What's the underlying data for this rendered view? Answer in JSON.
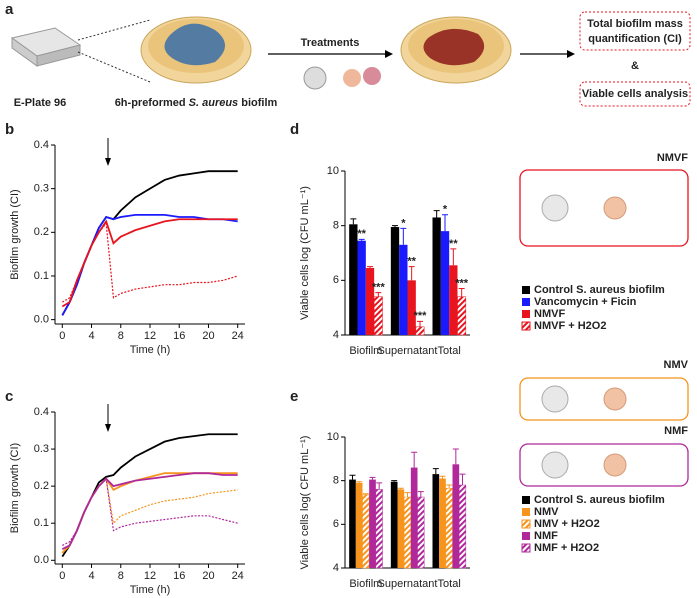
{
  "panel_labels": [
    "a",
    "b",
    "c",
    "d",
    "e"
  ],
  "schematic": {
    "plate": "E-Plate 96",
    "biofilm_prefix": "6h-preformed",
    "biofilm_species": "S. aureus",
    "biofilm_suffix": "biofilm",
    "treatments": "Treatments",
    "box1_line1": "Total biofilm mass",
    "box1_line2": "quantification (CI)",
    "and": "&",
    "box2": "Viable cells analysis"
  },
  "chart_data": [
    {
      "type": "line",
      "x_label": "Time (h)",
      "y_label": "Biofilm growth (CI)",
      "x": [
        0,
        1,
        2,
        3,
        4,
        5,
        6,
        7,
        8,
        10,
        12,
        14,
        16,
        18,
        20,
        22,
        24
      ],
      "xlim": [
        -1,
        25
      ],
      "xticks": [
        0,
        4,
        8,
        12,
        16,
        20,
        24
      ],
      "ylim": [
        -0.01,
        0.4
      ],
      "yticks": [
        {
          "value": 0,
          "label": "0.0"
        },
        0.1,
        0.2,
        0.3,
        0.4
      ],
      "series": [
        {
          "color": "#000000",
          "style": "solid",
          "values": [
            0.01,
            0.04,
            0.08,
            0.13,
            0.17,
            0.21,
            0.235,
            0.23,
            0.25,
            0.28,
            0.3,
            0.32,
            0.33,
            0.335,
            0.34,
            0.34,
            0.34
          ]
        },
        {
          "color": "#1a1aff",
          "style": "solid",
          "values": [
            0.01,
            0.04,
            0.08,
            0.13,
            0.17,
            0.21,
            0.235,
            0.23,
            0.235,
            0.24,
            0.24,
            0.24,
            0.235,
            0.235,
            0.23,
            0.23,
            0.225
          ]
        },
        {
          "color": "#e8141e",
          "style": "solid",
          "values": [
            0.03,
            0.04,
            0.09,
            0.13,
            0.17,
            0.2,
            0.225,
            0.175,
            0.19,
            0.205,
            0.215,
            0.225,
            0.23,
            0.23,
            0.23,
            0.23,
            0.23
          ]
        },
        {
          "color": "#e8141e",
          "style": "dotted",
          "values": [
            0.04,
            0.05,
            0.09,
            0.13,
            0.17,
            0.2,
            0.22,
            0.05,
            0.06,
            0.07,
            0.075,
            0.08,
            0.08,
            0.085,
            0.085,
            0.09,
            0.1
          ]
        }
      ]
    },
    {
      "type": "line",
      "x_label": "Time (h)",
      "y_label": "Biofilm growth (CI)",
      "x": [
        0,
        1,
        2,
        3,
        4,
        5,
        6,
        7,
        8,
        10,
        12,
        14,
        16,
        18,
        20,
        22,
        24
      ],
      "xlim": [
        -1,
        25
      ],
      "xticks": [
        0,
        4,
        8,
        12,
        16,
        20,
        24
      ],
      "ylim": [
        -0.01,
        0.4
      ],
      "yticks": [
        {
          "value": 0,
          "label": "0.0"
        },
        0.1,
        0.2,
        0.3,
        0.4
      ],
      "series": [
        {
          "color": "#000000",
          "style": "solid",
          "values": [
            0.01,
            0.04,
            0.08,
            0.13,
            0.17,
            0.21,
            0.225,
            0.23,
            0.25,
            0.28,
            0.3,
            0.32,
            0.33,
            0.335,
            0.34,
            0.34,
            0.34
          ]
        },
        {
          "color": "#f7941d",
          "style": "solid",
          "values": [
            0.02,
            0.04,
            0.08,
            0.13,
            0.17,
            0.2,
            0.22,
            0.19,
            0.2,
            0.215,
            0.225,
            0.235,
            0.235,
            0.235,
            0.235,
            0.235,
            0.235
          ]
        },
        {
          "color": "#f7941d",
          "style": "dotted",
          "values": [
            0.02,
            0.04,
            0.08,
            0.13,
            0.17,
            0.2,
            0.22,
            0.1,
            0.12,
            0.135,
            0.15,
            0.16,
            0.165,
            0.17,
            0.18,
            0.185,
            0.19
          ]
        },
        {
          "color": "#b0289a",
          "style": "solid",
          "values": [
            0.03,
            0.04,
            0.08,
            0.13,
            0.17,
            0.2,
            0.22,
            0.2,
            0.205,
            0.215,
            0.22,
            0.225,
            0.23,
            0.235,
            0.235,
            0.23,
            0.23
          ]
        },
        {
          "color": "#b0289a",
          "style": "dotted",
          "values": [
            0.04,
            0.05,
            0.08,
            0.13,
            0.17,
            0.2,
            0.22,
            0.08,
            0.09,
            0.1,
            0.105,
            0.11,
            0.115,
            0.12,
            0.12,
            0.11,
            0.1
          ]
        }
      ]
    },
    {
      "type": "bar",
      "y_label": "Viable cells log (CFU mL⁻¹)",
      "categories": [
        "Biofilm",
        "Supernatant",
        "Total"
      ],
      "ylim": [
        4,
        10
      ],
      "yticks": [
        4,
        6,
        8,
        10
      ],
      "series": [
        {
          "name": "Control S. aureus biofilm",
          "color": "#000000",
          "hatch": false,
          "values": [
            8.05,
            7.95,
            8.3
          ],
          "errors": [
            0.2,
            0.05,
            0.25
          ],
          "annotations": [
            null,
            null,
            null
          ]
        },
        {
          "name": "Vancomycin + Ficin",
          "color": "#1a1aff",
          "hatch": false,
          "values": [
            7.45,
            7.3,
            7.8
          ],
          "errors": [
            0.05,
            0.6,
            0.6
          ],
          "annotations": [
            "**",
            "*",
            "*"
          ]
        },
        {
          "name": "NMVF",
          "color": "#e8141e",
          "hatch": false,
          "values": [
            6.45,
            6.0,
            6.55
          ],
          "errors": [
            0.05,
            0.5,
            0.6
          ],
          "annotations": [
            null,
            "**",
            "**"
          ]
        },
        {
          "name": "NMVF + H2O2",
          "color": "#e8141e",
          "hatch": true,
          "values": [
            5.4,
            4.3,
            5.4
          ],
          "errors": [
            0.15,
            0.2,
            0.3
          ],
          "annotations": [
            "***",
            "***",
            "***"
          ]
        }
      ],
      "annotations": [
        {
          "text": "NMVF",
          "color": "#e8141e"
        }
      ]
    },
    {
      "type": "bar",
      "y_label": "Viable cells log( CFU mL⁻¹)",
      "categories": [
        "Biofilm",
        "Supernatant",
        "Total"
      ],
      "ylim": [
        4,
        10
      ],
      "yticks": [
        4,
        6,
        8,
        10
      ],
      "series": [
        {
          "name": "Control S. aureus biofilm",
          "color": "#000000",
          "hatch": false,
          "values": [
            8.05,
            7.95,
            8.3
          ],
          "errors": [
            0.2,
            0.05,
            0.25
          ]
        },
        {
          "name": "NMV",
          "color": "#f7941d",
          "hatch": false,
          "values": [
            7.9,
            7.6,
            8.1
          ],
          "errors": [
            0.05,
            0.05,
            0.1
          ]
        },
        {
          "name": "NMV + H2O2",
          "color": "#f7941d",
          "hatch": true,
          "values": [
            7.35,
            7.25,
            7.65
          ],
          "errors": [
            0.05,
            0.2,
            0.15
          ]
        },
        {
          "name": "NMF",
          "color": "#b0289a",
          "hatch": false,
          "values": [
            8.05,
            8.6,
            8.75
          ],
          "errors": [
            0.1,
            0.7,
            0.7
          ]
        },
        {
          "name": "NMF + H2O2",
          "color": "#b0289a",
          "hatch": true,
          "values": [
            7.6,
            7.25,
            7.8
          ],
          "errors": [
            0.3,
            0.25,
            0.5
          ]
        }
      ],
      "annotations": [
        {
          "text": "NMV",
          "color": "#f7941d"
        },
        {
          "text": "NMF",
          "color": "#b0289a"
        }
      ]
    }
  ]
}
